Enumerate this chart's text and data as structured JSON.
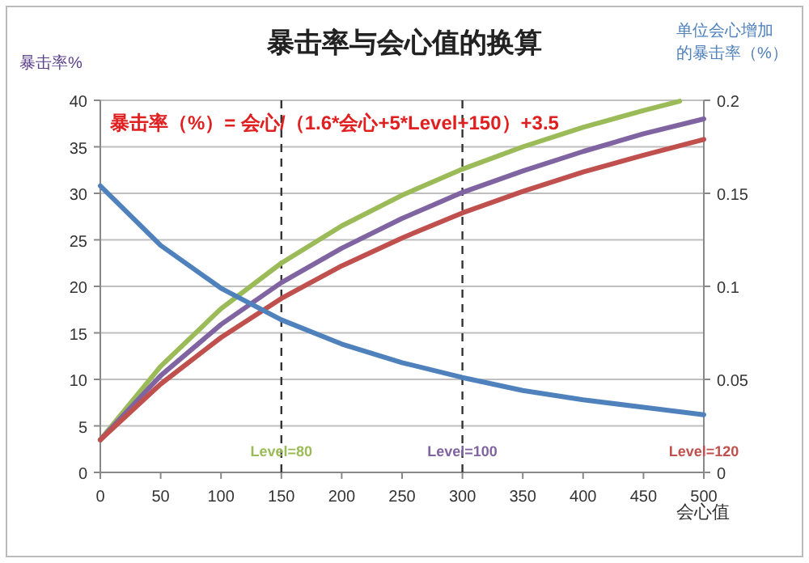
{
  "chart_data": {
    "type": "line",
    "title": "暴击率与会心值的换算",
    "ylabel": "暴击率%",
    "y2label": "单位会心增加的暴击率（%）",
    "xlabel": "会心值",
    "annotations": [
      "暴击率（%）= 会心/（1.6*会心+5*Level+150）+3.5"
    ],
    "xlim": [
      0,
      500
    ],
    "xticks": [
      0,
      50,
      100,
      150,
      200,
      250,
      300,
      350,
      400,
      450,
      500
    ],
    "ylim": [
      0,
      40
    ],
    "yticks": [
      0,
      5,
      10,
      15,
      20,
      25,
      30,
      35,
      40
    ],
    "y2lim": [
      0,
      0.2
    ],
    "y2ticks": [
      0,
      0.05,
      0.1,
      0.15,
      0.2
    ],
    "grid": "y",
    "marker": "none",
    "line_style": "solid",
    "ref_lines": [
      {
        "axis": "x",
        "value": 150,
        "line_style": "dashed",
        "color": "#333333"
      },
      {
        "axis": "x",
        "value": 300,
        "line_style": "dashed",
        "color": "#333333"
      }
    ],
    "series": [
      {
        "name": "Level=80",
        "color": "#9bbb59",
        "x": [
          0,
          50,
          100,
          150,
          200,
          250,
          300,
          350,
          400,
          450,
          480
        ],
        "values": [
          3.5,
          11.4,
          17.6,
          22.5,
          26.5,
          29.8,
          32.6,
          35.0,
          37.1,
          38.9,
          39.9
        ]
      },
      {
        "name": "Level=100",
        "color": "#8064a2",
        "x": [
          0,
          50,
          100,
          150,
          200,
          250,
          300,
          350,
          400,
          450,
          500
        ],
        "values": [
          3.5,
          10.4,
          15.9,
          20.4,
          24.1,
          27.3,
          30.1,
          32.4,
          34.5,
          36.4,
          38.0
        ]
      },
      {
        "name": "Level=120",
        "color": "#c0504d",
        "x": [
          0,
          50,
          100,
          150,
          200,
          250,
          300,
          350,
          400,
          450,
          500
        ],
        "values": [
          3.5,
          9.5,
          14.5,
          18.7,
          22.2,
          25.2,
          27.9,
          30.2,
          32.3,
          34.1,
          35.8
        ]
      },
      {
        "color": "#4f81bd",
        "axis": "y2",
        "x": [
          0,
          50,
          100,
          150,
          200,
          250,
          300,
          350,
          400,
          450,
          500
        ],
        "values": [
          0.154,
          0.122,
          0.099,
          0.082,
          0.069,
          0.059,
          0.051,
          0.044,
          0.039,
          0.035,
          0.031
        ]
      }
    ]
  }
}
